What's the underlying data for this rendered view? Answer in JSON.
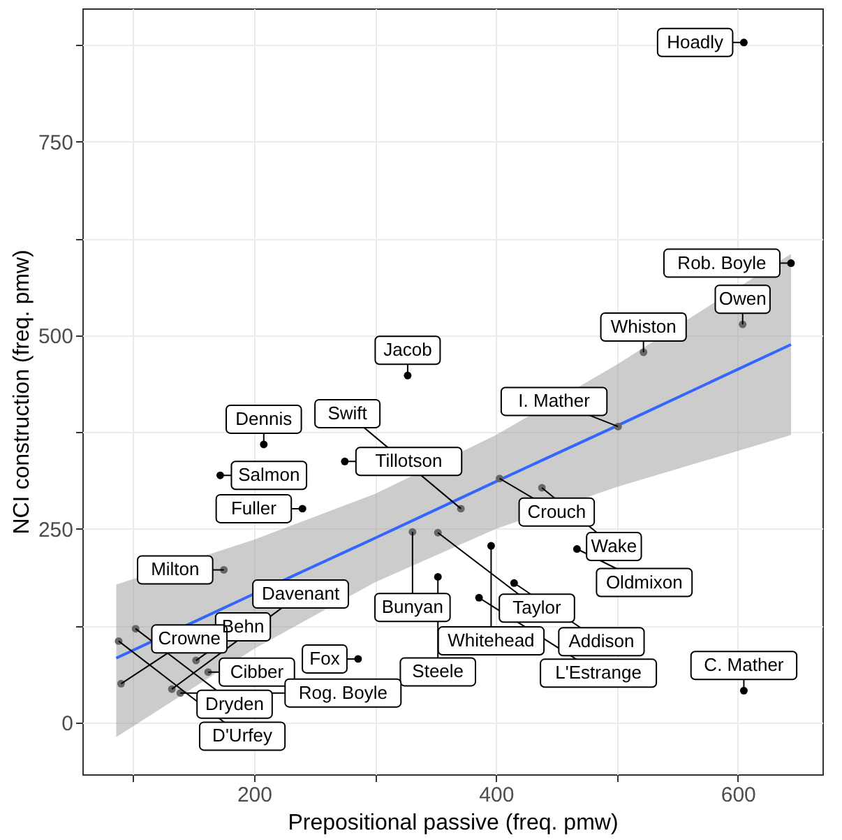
{
  "chart_data": {
    "type": "scatter",
    "xlabel": "Prepositional passive (freq. pmw)",
    "ylabel": "NCI construction (freq. pmw)",
    "xlim": [
      58,
      670
    ],
    "ylim": [
      -67,
      922
    ],
    "xticks": [
      {
        "value": 100,
        "label": null
      },
      200,
      {
        "value": 300,
        "label": null
      },
      400,
      {
        "value": 500,
        "label": null
      },
      600
    ],
    "yticks": [
      0,
      {
        "value": 125,
        "label": null
      },
      250,
      {
        "value": 375,
        "label": null
      },
      500,
      {
        "value": 625,
        "label": null
      },
      750,
      {
        "value": 875,
        "label": null
      }
    ],
    "grid": true,
    "marker": "circle",
    "series": [
      {
        "color": "#000000",
        "x": [
          605,
          644,
          327,
          208,
          172,
          275,
          240,
          396,
          467,
          415,
          352,
          386,
          286,
          605
        ],
        "values": [
          878,
          593,
          448,
          359,
          319,
          337,
          276,
          228,
          224,
          180,
          188,
          161,
          82,
          41
        ]
      },
      {
        "color": "#666666",
        "x": [
          604,
          522,
          501,
          403,
          438,
          371,
          331,
          352,
          175,
          102,
          88,
          152,
          162,
          132,
          139,
          90
        ],
        "values": [
          514,
          478,
          382,
          315,
          303,
          276,
          246,
          245,
          197,
          121,
          105,
          80,
          65,
          43,
          38,
          50
        ]
      },
      {
        "type": "line",
        "marker": "none",
        "color": "#3366ff",
        "x": [
          86,
          200,
          300,
          400,
          500,
          644
        ],
        "values": [
          83,
          166,
          238,
          311,
          383,
          488
        ],
        "lower": [
          -19,
          95,
          181,
          250,
          304,
          371
        ],
        "upper": [
          178,
          236,
          295,
          371,
          462,
          605
        ]
      }
    ],
    "annotations": [
      {
        "text": "Hoadly",
        "x": 605,
        "y": 878
      },
      {
        "text": "Rob. Boyle",
        "x": 644,
        "y": 593
      },
      {
        "text": "Owen",
        "x": 604,
        "y": 514
      },
      {
        "text": "Whiston",
        "x": 522,
        "y": 478
      },
      {
        "text": "Jacob",
        "x": 327,
        "y": 448
      },
      {
        "text": "I. Mather",
        "x": 501,
        "y": 382
      },
      {
        "text": "Dennis",
        "x": 208,
        "y": 359
      },
      {
        "text": "Salmon",
        "x": 172,
        "y": 319
      },
      {
        "text": "Tillotson",
        "x": 275,
        "y": 337
      },
      {
        "text": "Crouch",
        "x": 403,
        "y": 315
      },
      {
        "text": "Wake",
        "x": 438,
        "y": 303
      },
      {
        "text": "Swift",
        "x": 371,
        "y": 276
      },
      {
        "text": "Fuller",
        "x": 240,
        "y": 276
      },
      {
        "text": "Bunyan",
        "x": 331,
        "y": 246
      },
      {
        "text": "Taylor",
        "x": 352,
        "y": 245
      },
      {
        "text": "Whitehead",
        "x": 396,
        "y": 228
      },
      {
        "text": "Oldmixon",
        "x": 467,
        "y": 224
      },
      {
        "text": "Milton",
        "x": 175,
        "y": 197
      },
      {
        "text": "Addison",
        "x": 415,
        "y": 180
      },
      {
        "text": "Steele",
        "x": 352,
        "y": 188
      },
      {
        "text": "L'Estrange",
        "x": 386,
        "y": 161
      },
      {
        "text": "Dryden",
        "x": 102,
        "y": 121
      },
      {
        "text": "D'Urfey",
        "x": 88,
        "y": 105
      },
      {
        "text": "Fox",
        "x": 286,
        "y": 82
      },
      {
        "text": "Behn",
        "x": 152,
        "y": 80
      },
      {
        "text": "Cibber",
        "x": 162,
        "y": 65
      },
      {
        "text": "Davenant",
        "x": 132,
        "y": 43
      },
      {
        "text": "Rog. Boyle",
        "x": 139,
        "y": 38
      },
      {
        "text": "Crowne",
        "x": 90,
        "y": 50
      },
      {
        "text": "C. Mather",
        "x": 605,
        "y": 41
      }
    ]
  }
}
